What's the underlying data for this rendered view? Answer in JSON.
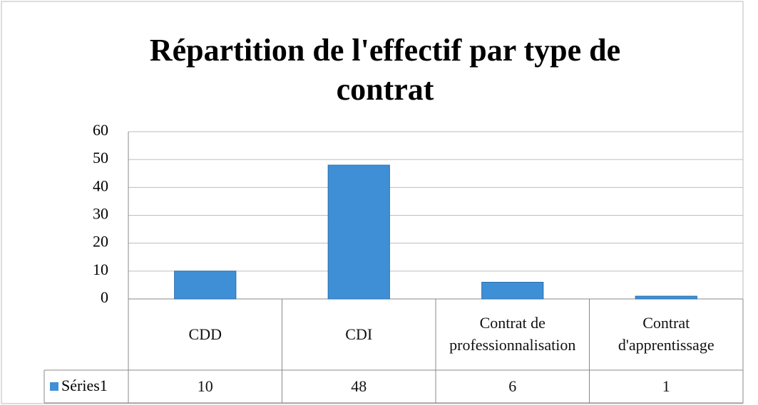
{
  "chart_data": {
    "type": "bar",
    "title": "Répartition de l'effectif par type de contrat",
    "categories": [
      "CDD",
      "CDI",
      "Contrat de professionnalisation",
      "Contrat d'apprentissage"
    ],
    "series": [
      {
        "name": "Séries1",
        "color": "#3f8fd6",
        "values": [
          10,
          48,
          6,
          1
        ]
      }
    ],
    "ylim": [
      0,
      60
    ],
    "yticks": [
      0,
      10,
      20,
      30,
      40,
      50,
      60
    ],
    "grid": true
  }
}
